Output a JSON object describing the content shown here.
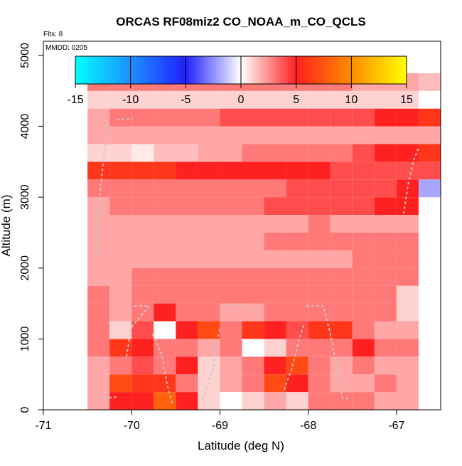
{
  "chart_data": {
    "type": "heatmap",
    "title": "ORCAS RF08miz2 CO_NOAA_m_CO_QCLS",
    "xlabel": "Latitude (deg N)",
    "ylabel": "Altitude (m)",
    "flights_label": "Flts: 8",
    "date_label": "MMDD: 0205",
    "xlim": [
      -71,
      -66.5
    ],
    "ylim": [
      0,
      5200
    ],
    "x_ticks": [
      -71,
      -70,
      -69,
      -68,
      -67
    ],
    "y_ticks": [
      0,
      1000,
      2000,
      3000,
      4000,
      5000
    ],
    "colorbar": {
      "range": [
        -15,
        15
      ],
      "ticks": [
        -15,
        -10,
        -5,
        0,
        5,
        10,
        15
      ],
      "stops": [
        {
          "value": -15,
          "color": "#00ffff"
        },
        {
          "value": -10,
          "color": "#1e90ff"
        },
        {
          "value": -5,
          "color": "#2020ff"
        },
        {
          "value": 0,
          "color": "#ffffff"
        },
        {
          "value": 5,
          "color": "#ff2020"
        },
        {
          "value": 10,
          "color": "#ff8c00"
        },
        {
          "value": 15,
          "color": "#ffff00"
        }
      ]
    },
    "grid": {
      "lon_start": -70.5,
      "lat_step": 0.25,
      "alt_start": 0,
      "alt_step": 250,
      "rows_bottom_to_top": [
        [
          2,
          5,
          5,
          8,
          5,
          1,
          0,
          1,
          2,
          1,
          3,
          3,
          3,
          2,
          2
        ],
        [
          2,
          7,
          6,
          6,
          3,
          1,
          2,
          3,
          7,
          5,
          3,
          2,
          2,
          3,
          2
        ],
        [
          2,
          3,
          4,
          3,
          5,
          1,
          2,
          3,
          5,
          7,
          3,
          2,
          3,
          2,
          2
        ],
        [
          3,
          6,
          5,
          3,
          3,
          2,
          3,
          0,
          1,
          3,
          3,
          3,
          5,
          3,
          3
        ],
        [
          3,
          1,
          4,
          0,
          5,
          7,
          3,
          6,
          5,
          4,
          6,
          6,
          3,
          2,
          2
        ],
        [
          3,
          2,
          3,
          5,
          3,
          3,
          2,
          2,
          3,
          3,
          3,
          3,
          3,
          3,
          1
        ],
        [
          3,
          2,
          3,
          3,
          3,
          3,
          3,
          3,
          3,
          3,
          3,
          3,
          3,
          3,
          1
        ],
        [
          2,
          2,
          3,
          3,
          3,
          3,
          3,
          3,
          3,
          3,
          3,
          3,
          3,
          3,
          3
        ],
        [
          2,
          2,
          2,
          2,
          2,
          2,
          2,
          2,
          2,
          2,
          2,
          2,
          3,
          3,
          3,
          null
        ],
        [
          2,
          2,
          2,
          2,
          2,
          2,
          2,
          2,
          3,
          3,
          3,
          3,
          3,
          3,
          3,
          null
        ],
        [
          2,
          2,
          2,
          2,
          2,
          2,
          2,
          2,
          2,
          2,
          3,
          2,
          2,
          2,
          2,
          null
        ],
        [
          2,
          3,
          3,
          3,
          3,
          3,
          3,
          3,
          4,
          4,
          4,
          4,
          4,
          5,
          5,
          null
        ],
        [
          3,
          3,
          3,
          3,
          3,
          3,
          3,
          3,
          3,
          4,
          4,
          4,
          4,
          4,
          5,
          -2
        ],
        [
          6,
          6,
          6,
          6,
          5,
          5,
          5,
          5,
          5,
          5,
          5,
          4,
          4,
          4,
          4,
          4
        ],
        [
          1,
          1,
          0.5,
          1.5,
          1.5,
          2,
          2,
          3,
          3,
          3,
          3,
          3,
          4,
          5,
          5,
          6
        ],
        [
          2,
          2,
          2,
          2,
          2,
          2,
          2,
          2,
          2,
          2,
          2,
          2,
          2,
          2,
          2,
          2
        ],
        [
          2,
          3,
          3,
          3,
          3,
          3,
          4,
          4,
          4,
          4,
          4,
          4,
          4,
          5,
          5,
          6
        ],
        [
          1,
          1,
          1,
          1,
          1,
          1,
          1,
          1,
          1,
          1,
          1,
          1,
          1,
          1,
          1,
          0
        ],
        [
          3,
          3,
          3,
          3,
          3,
          3,
          3,
          3,
          3,
          3,
          3,
          3,
          2,
          2,
          2,
          1.5
        ]
      ]
    }
  }
}
